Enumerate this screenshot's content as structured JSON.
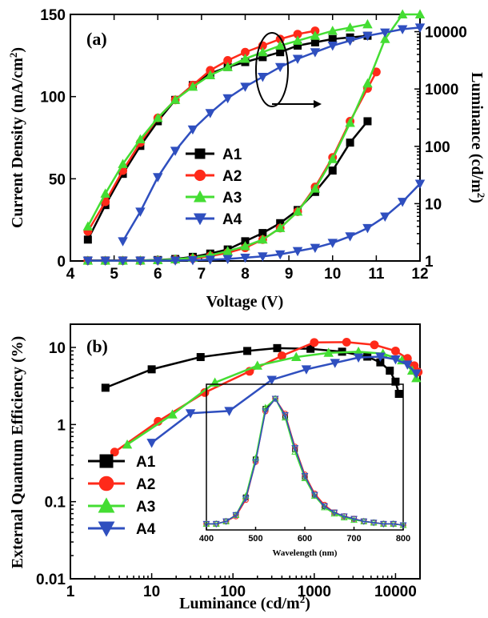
{
  "chart_data": [
    {
      "panel": "(a)",
      "type": "line",
      "xlabel": "Voltage (V)",
      "ylabel": "Current Density (mA/cm",
      "ylabel_sup": "2",
      "ylabel_tail": ")",
      "y2label": "Luminance (cd/m",
      "y2label_sup": "2",
      "y2label_tail": ")",
      "xlim": [
        4,
        12
      ],
      "ylim": [
        0,
        150
      ],
      "y2lim": [
        1,
        20000
      ],
      "y2scale": "log",
      "xticks": [
        "4",
        "5",
        "6",
        "7",
        "8",
        "9",
        "10",
        "11",
        "12"
      ],
      "yticks": [
        "0",
        "50",
        "100",
        "150"
      ],
      "y2ticks": [
        "1",
        "10",
        "100",
        "1000",
        "10000"
      ],
      "legend_position": "middle-left",
      "series": [
        {
          "name": "A1",
          "color": "#000000",
          "marker": "square",
          "current_density": {
            "x": [
              4.4,
              4.8,
              5.2,
              5.6,
              6.0,
              6.4,
              6.8,
              7.2,
              7.6,
              8.0,
              8.4,
              8.8,
              9.2,
              9.6,
              10.0,
              10.4,
              10.8
            ],
            "y": [
              0.3,
              0.3,
              0.3,
              0.3,
              0.6,
              1.2,
              2.5,
              4.5,
              7,
              12,
              17,
              23,
              31,
              42,
              55,
              72,
              85
            ]
          },
          "luminance": {
            "x": [
              4.4,
              4.8,
              5.2,
              5.6,
              6.0,
              6.4,
              6.8,
              7.2,
              7.6,
              8.0,
              8.4,
              8.8,
              9.2,
              9.6,
              10.0,
              10.4,
              10.8
            ],
            "y": [
              13,
              34,
              53,
              70,
              85,
              98,
              107,
              114,
              118,
              121,
              124,
              127,
              131,
              133,
              135,
              136,
              137
            ]
          }
        },
        {
          "name": "A2",
          "color": "#ff2a1a",
          "marker": "circle",
          "current_density": {
            "x": [
              4.4,
              4.8,
              5.2,
              5.6,
              6.0,
              6.4,
              6.8,
              7.2,
              7.6,
              8.0,
              8.4,
              8.8,
              9.2,
              9.6,
              10.0,
              10.4,
              10.8,
              11.0
            ],
            "y": [
              0.2,
              0.2,
              0.2,
              0.2,
              0.4,
              0.8,
              1.5,
              3,
              5,
              8,
              13,
              20,
              30,
              45,
              63,
              85,
              105,
              115
            ]
          },
          "luminance": {
            "x": [
              4.4,
              4.8,
              5.2,
              5.6,
              6.0,
              6.4,
              6.8,
              7.2,
              7.6,
              8.0,
              8.4,
              8.8,
              9.2,
              9.6
            ],
            "y": [
              18,
              36,
              55,
              72,
              87,
              98,
              107,
              116,
              122,
              127,
              131,
              135,
              138,
              140
            ]
          }
        },
        {
          "name": "A3",
          "color": "#44dd33",
          "marker": "triangle-up",
          "current_density": {
            "x": [
              4.4,
              4.8,
              5.2,
              5.6,
              6.0,
              6.4,
              6.8,
              7.2,
              7.6,
              8.0,
              8.4,
              8.8,
              9.2,
              9.6,
              10.0,
              10.4,
              10.8,
              11.2,
              11.6,
              12.0
            ],
            "y": [
              0.2,
              0.2,
              0.2,
              0.3,
              0.5,
              1,
              2,
              3.5,
              6,
              9,
              13,
              20,
              30,
              44,
              62,
              84,
              108,
              135,
              160,
              185
            ]
          },
          "luminance": {
            "x": [
              4.4,
              4.8,
              5.2,
              5.6,
              6.0,
              6.4,
              6.8,
              7.2,
              7.6,
              8.0,
              8.4,
              8.8,
              9.2,
              9.6,
              10.0,
              10.4,
              10.8
            ],
            "y": [
              21,
              41,
              59,
              74,
              87,
              98,
              106,
              113,
              118,
              123,
              127,
              131,
              134,
              137,
              140,
              142,
              144
            ]
          }
        },
        {
          "name": "A4",
          "color": "#2f4fbf",
          "marker": "triangle-down",
          "current_density": {
            "x": [
              4.4,
              4.8,
              5.2,
              5.6,
              6.0,
              6.4,
              6.8,
              7.2,
              7.6,
              8.0,
              8.4,
              8.8,
              9.2,
              9.6,
              10.0,
              10.4,
              10.8,
              11.2,
              11.6,
              12.0
            ],
            "y": [
              0.2,
              0.2,
              0.2,
              0.2,
              0.2,
              0.3,
              0.5,
              0.8,
              1.2,
              2,
              2.8,
              4,
              6,
              8,
              11,
              15,
              20,
              27,
              36,
              47
            ]
          },
          "luminance": {
            "x": [
              5.2,
              5.6,
              6.0,
              6.4,
              6.8,
              7.2,
              7.6,
              8.0,
              8.4,
              8.8,
              9.2,
              9.6,
              10.0,
              10.4,
              10.8,
              11.2,
              11.6,
              12.0
            ],
            "y": [
              12,
              30,
              51,
              67,
              80,
              90,
              99,
              106,
              112,
              118,
              123,
              127,
              131,
              134,
              137,
              139,
              141,
              142
            ]
          }
        }
      ]
    },
    {
      "panel": "(b)",
      "type": "line",
      "xlabel": "Luminance (cd/m",
      "xlabel_sup": "2",
      "xlabel_tail": ")",
      "ylabel": "External Quantum Efficiency (%)",
      "xscale": "log",
      "yscale": "log",
      "xlim": [
        1,
        20000
      ],
      "ylim": [
        0.01,
        20
      ],
      "xticks": [
        "1",
        "10",
        "100",
        "1000",
        "10000"
      ],
      "yticks": [
        "0.01",
        "0.1",
        "1",
        "10"
      ],
      "legend_position": "bottom-left",
      "series": [
        {
          "name": "A1",
          "color": "#000000",
          "marker": "square",
          "x": [
            2.7,
            10,
            40,
            150,
            350,
            900,
            2200,
            4500,
            6500,
            8500,
            10000,
            11000
          ],
          "y": [
            3,
            5.2,
            7.5,
            9,
            9.8,
            9.6,
            8.8,
            7.6,
            6.4,
            5,
            3.6,
            2.5
          ]
        },
        {
          "name": "A2",
          "color": "#ff2a1a",
          "marker": "circle",
          "x": [
            3.5,
            12,
            45,
            160,
            400,
            1000,
            2500,
            5500,
            10000,
            14000,
            17000,
            19000
          ],
          "y": [
            0.44,
            1.1,
            2.6,
            4.9,
            7.8,
            11.6,
            11.7,
            10.8,
            9,
            7.2,
            5.8,
            4.8
          ]
        },
        {
          "name": "A3",
          "color": "#44dd33",
          "marker": "triangle-up",
          "x": [
            5,
            18,
            60,
            200,
            600,
            1500,
            3500,
            7000,
            12000,
            16000,
            18000
          ],
          "y": [
            0.55,
            1.35,
            3.5,
            5.8,
            7.5,
            8.5,
            8.8,
            8.3,
            6.8,
            5,
            4
          ]
        },
        {
          "name": "A4",
          "color": "#2f4fbf",
          "marker": "triangle-down",
          "x": [
            10,
            30,
            90,
            300,
            800,
            1800,
            3500,
            6500,
            10000,
            14000,
            18000
          ],
          "y": [
            0.58,
            1.4,
            1.5,
            3.8,
            5.2,
            6.3,
            7.4,
            7.6,
            7,
            6,
            4.6
          ]
        }
      ]
    },
    {
      "panel": "inset",
      "type": "line",
      "xlabel": "Wavelength (nm)",
      "xlim": [
        400,
        800
      ],
      "ylim": [
        0,
        1
      ],
      "xticks": [
        "400",
        "500",
        "600",
        "700",
        "800"
      ],
      "x": [
        400,
        420,
        440,
        460,
        480,
        500,
        520,
        540,
        560,
        580,
        600,
        620,
        640,
        660,
        680,
        700,
        720,
        740,
        760,
        780,
        800
      ],
      "series": [
        {
          "color": "#000000",
          "y": [
            0.01,
            0.01,
            0.03,
            0.08,
            0.22,
            0.52,
            0.92,
            1.0,
            0.86,
            0.6,
            0.38,
            0.24,
            0.15,
            0.1,
            0.07,
            0.05,
            0.03,
            0.02,
            0.01,
            0.01,
            0.0
          ]
        },
        {
          "color": "#ff2a1a",
          "y": [
            0.01,
            0.01,
            0.03,
            0.07,
            0.2,
            0.5,
            0.9,
            1.0,
            0.88,
            0.62,
            0.4,
            0.25,
            0.16,
            0.1,
            0.07,
            0.05,
            0.03,
            0.02,
            0.01,
            0.01,
            0.0
          ]
        },
        {
          "color": "#44dd33",
          "y": [
            0.01,
            0.01,
            0.03,
            0.08,
            0.23,
            0.53,
            0.93,
            1.0,
            0.85,
            0.58,
            0.37,
            0.23,
            0.14,
            0.09,
            0.06,
            0.04,
            0.03,
            0.02,
            0.01,
            0.01,
            0.0
          ]
        },
        {
          "color": "#2f4fbf",
          "y": [
            0.01,
            0.01,
            0.03,
            0.08,
            0.21,
            0.5,
            0.9,
            1.0,
            0.87,
            0.61,
            0.39,
            0.24,
            0.15,
            0.1,
            0.07,
            0.05,
            0.03,
            0.02,
            0.01,
            0.01,
            0.0
          ]
        }
      ]
    }
  ]
}
